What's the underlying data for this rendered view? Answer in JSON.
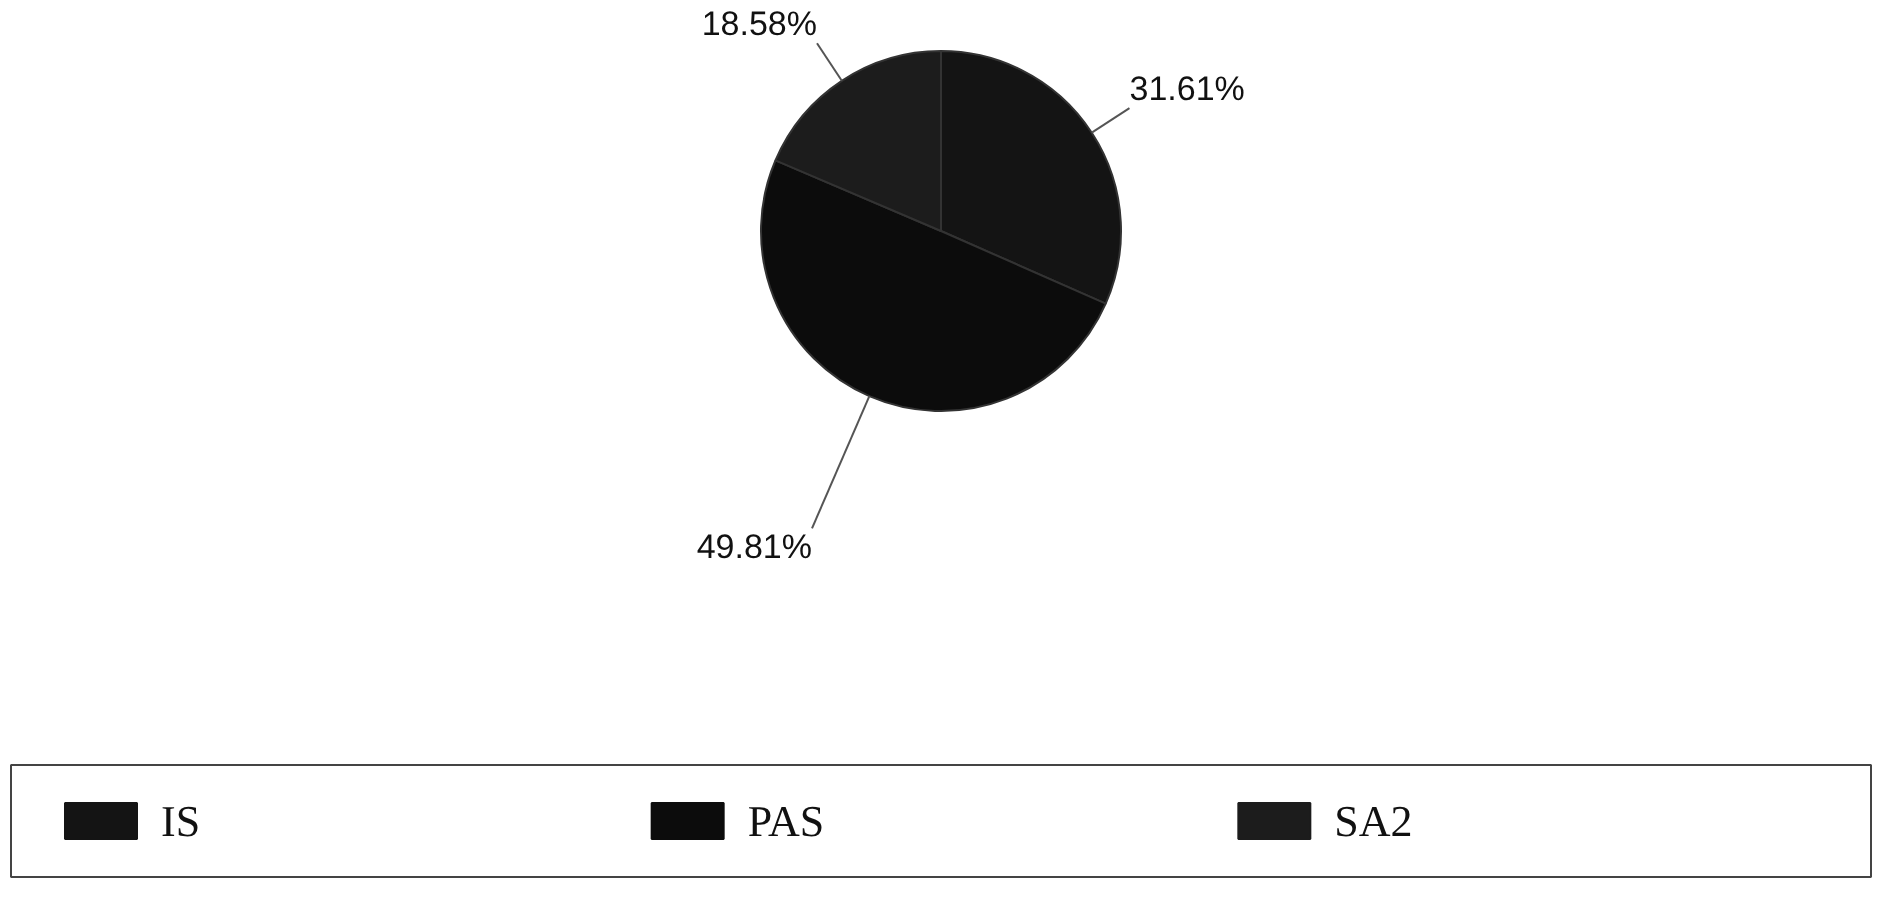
{
  "chart_data": {
    "type": "pie",
    "categories": [
      "IS",
      "PAS",
      "SA2"
    ],
    "values": [
      31.61,
      49.81,
      18.58
    ],
    "colors": [
      "#141414",
      "#0c0c0c",
      "#1c1c1c"
    ],
    "value_labels": [
      "31.61%",
      "49.81%",
      "18.58%"
    ],
    "legend": "bottom"
  }
}
